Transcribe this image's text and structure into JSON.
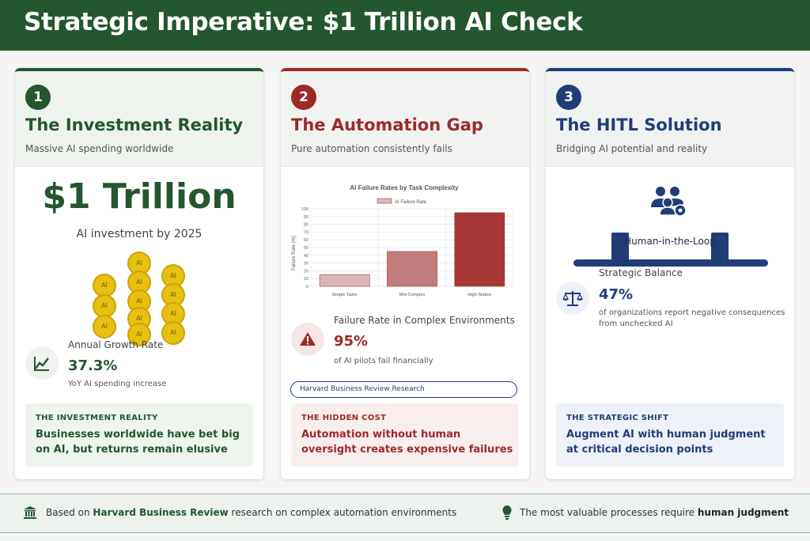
{
  "header": {
    "title": "Strategic Imperative: $1 Trillion AI Check"
  },
  "cards": [
    {
      "number": "1",
      "title": "The Investment Reality",
      "subtitle": "Massive AI spending worldwide",
      "big_value": "$1 Trillion",
      "big_caption": "AI investment by 2025",
      "coin_label": "AI",
      "stat": {
        "icon": "trend-chart-icon",
        "label": "Annual Growth Rate",
        "value": "37.3%",
        "desc": "YoY AI spending increase"
      },
      "callout": {
        "kicker": "THE INVESTMENT REALITY",
        "text": "Businesses worldwide have bet big on AI, but returns remain elusive"
      }
    },
    {
      "number": "2",
      "title": "The Automation Gap",
      "subtitle": "Pure automation consistently fails",
      "stat": {
        "icon": "warning-icon",
        "label": "Failure Rate in Complex Environments",
        "value": "95%",
        "desc": "of AI pilots fail financially"
      },
      "badge": "Harvard Business Review Research",
      "callout": {
        "kicker": "THE HIDDEN COST",
        "text": "Automation without human oversight creates expensive failures"
      }
    },
    {
      "number": "3",
      "title": "The HITL Solution",
      "subtitle": "Bridging AI potential and reality",
      "illustration_text": "Human-in-the-Loop",
      "stat": {
        "icon": "balance-scale-icon",
        "label": "Strategic Balance",
        "value": "47%",
        "desc_line1": "of organizations report negative consequences",
        "desc_line2": "from unchecked AI"
      },
      "callout": {
        "kicker": "THE STRATEGIC SHIFT",
        "text": "Augment AI with human judgment at critical decision points"
      }
    }
  ],
  "chart_data": {
    "type": "bar",
    "title": "AI Failure Rates by Task Complexity",
    "categories": [
      "Simple Tasks",
      "Mid-Complex",
      "High-Stakes"
    ],
    "series": [
      {
        "name": "AI Failure Rate",
        "values": [
          15,
          45,
          95
        ]
      }
    ],
    "xlabel": "",
    "ylabel": "Failure Rate (%)",
    "ylim": [
      0,
      100
    ],
    "yticks": [
      0,
      10,
      20,
      30,
      40,
      50,
      60,
      70,
      80,
      90,
      100
    ],
    "grid": true,
    "legend": "top",
    "colors": {
      "light": "#dcb9b9",
      "mid": "#bf7d7d",
      "dark": "#a73636"
    }
  },
  "footer": {
    "left_pre": "Based on ",
    "left_bold": "Harvard Business Review",
    "left_post": " research on complex automation environments",
    "right_pre": "The most valuable processes require ",
    "right_bold": "human judgment"
  },
  "colors": {
    "green": "#24562f",
    "red": "#9c2a2a",
    "blue": "#223c78",
    "gold": "#e8c010"
  }
}
